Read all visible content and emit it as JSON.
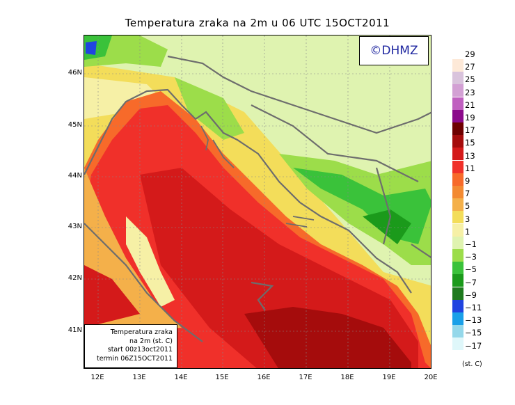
{
  "title": "Temperatura zraka na 2m u 06 UTC 15OCT2011",
  "logo": "©DHMZ",
  "info_box": {
    "line1": "Temperatura zraka",
    "line2": "na 2m (st. C)",
    "line3": "start 00z13oct2011",
    "line4": "termin 06Z15OCT2011"
  },
  "lat_labels": [
    "46N",
    "45N",
    "44N",
    "43N",
    "42N",
    "41N"
  ],
  "lon_labels": [
    "12E",
    "13E",
    "14E",
    "15E",
    "16E",
    "17E",
    "18E",
    "19E",
    "20E"
  ],
  "legend": {
    "levels": [
      "29",
      "27",
      "25",
      "23",
      "21",
      "19",
      "17",
      "15",
      "13",
      "11",
      "9",
      "7",
      "5",
      "3",
      "1",
      "−1",
      "−3",
      "−5",
      "−7",
      "−9",
      "−11",
      "−13",
      "−15",
      "−17"
    ],
    "colors": [
      "#fde9d8",
      "#d9c3dc",
      "#d3a0d4",
      "#c060c0",
      "#8b0a8b",
      "#6e0000",
      "#a50c0c",
      "#d41a1a",
      "#f0302a",
      "#f76a2a",
      "#f38a32",
      "#f4b04a",
      "#f3dd5a",
      "#f6f0a6",
      "#dff3b0",
      "#9cdd4a",
      "#3ac23a",
      "#1b9a1b",
      "#1f7a1f",
      "#2044e0",
      "#1aa0e8",
      "#94d8ea",
      "#dff7fa"
    ],
    "unit": "(st. C)"
  },
  "colors": {
    "sea_warm": "#d41a1a",
    "sea_hot": "#a50c0c",
    "coast_orange": "#f76a2a",
    "land_yellow": "#f3dd5a",
    "land_pale": "#dff3b0",
    "land_green": "#3ac23a",
    "border_gray": "#6d6d6d"
  }
}
